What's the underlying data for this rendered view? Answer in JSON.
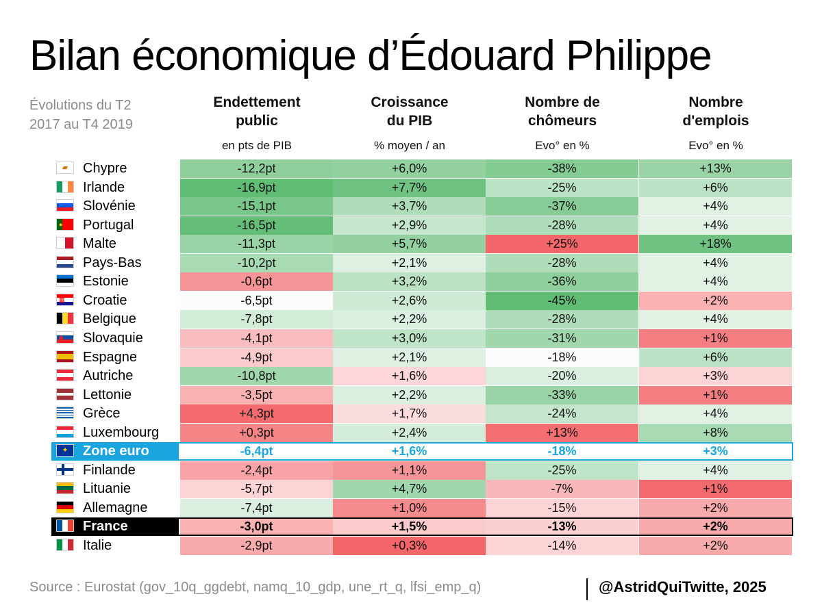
{
  "title": "Bilan économique d’Édouard Philippe",
  "period": [
    "Évolutions du T2",
    "2017 au T4 2019"
  ],
  "columns": [
    {
      "title": [
        "Endettement",
        "public"
      ],
      "unit": "en pts de PIB"
    },
    {
      "title": [
        "Croissance",
        "du PIB"
      ],
      "unit": "% moyen / an"
    },
    {
      "title": [
        "Nombre de",
        "chômeurs"
      ],
      "unit": "Evo° en %"
    },
    {
      "title": [
        "Nombre",
        "d'emplois"
      ],
      "unit": "Evo° en %"
    }
  ],
  "colors": {
    "green_strong": "#5ab96e",
    "green_light": "#e8f5eb",
    "neutral": "#fbfcfb",
    "red_light": "#fde3e4",
    "red_strong": "#f26568",
    "eurozone_accent": "#1aa5de",
    "france_accent": "#000000"
  },
  "chart_data": {
    "type": "table",
    "title": "Bilan économique d’Édouard Philippe",
    "subtitle": "Évolutions du T2 2017 au T4 2019",
    "columns": [
      "Endettement public",
      "Croissance du PIB",
      "Nombre de chômeurs",
      "Nombre d'emplois"
    ],
    "units": [
      "en pts de PIB",
      "% moyen / an",
      "Evo° en %",
      "Evo° en %"
    ],
    "rows": [
      {
        "country": "Chypre",
        "flag": "cyprus-flag",
        "values": [
          "-12,2pt",
          "+6,0%",
          "-38%",
          "+13%"
        ],
        "scores": [
          0.63,
          0.6,
          0.7,
          0.55
        ]
      },
      {
        "country": "Irlande",
        "flag": "ireland-flag",
        "values": [
          "-16,9pt",
          "+7,7%",
          "-25%",
          "+6%"
        ],
        "scores": [
          0.95,
          0.85,
          0.3,
          0.3
        ]
      },
      {
        "country": "Slovénie",
        "flag": "slovenia-flag",
        "values": [
          "-15,1pt",
          "+3,7%",
          "-37%",
          "+4%"
        ],
        "scores": [
          0.78,
          0.4,
          0.68,
          0.05
        ]
      },
      {
        "country": "Portugal",
        "flag": "portugal-flag",
        "values": [
          "-16,5pt",
          "+2,9%",
          "-28%",
          "+4%"
        ],
        "scores": [
          0.92,
          0.25,
          0.4,
          0.05
        ]
      },
      {
        "country": "Malte",
        "flag": "malta-flag",
        "values": [
          "-11,3pt",
          "+5,7%",
          "+25%",
          "+18%"
        ],
        "scores": [
          0.55,
          0.6,
          -1.0,
          0.85
        ]
      },
      {
        "country": "Pays-Bas",
        "flag": "netherlands-flag",
        "values": [
          "-10,2pt",
          "+2,1%",
          "-28%",
          "+4%"
        ],
        "scores": [
          0.45,
          0.08,
          0.4,
          0.05
        ]
      },
      {
        "country": "Estonie",
        "flag": "estonia-flag",
        "values": [
          "-0,6pt",
          "+3,2%",
          "-36%",
          "+4%"
        ],
        "scores": [
          -0.62,
          0.32,
          0.62,
          0.05
        ]
      },
      {
        "country": "Croatie",
        "flag": "croatia-flag",
        "values": [
          "-6,5pt",
          "+2,6%",
          "-45%",
          "+2%"
        ],
        "scores": [
          0.0,
          0.18,
          0.95,
          -0.4
        ]
      },
      {
        "country": "Belgique",
        "flag": "belgium-flag",
        "values": [
          "-7,8pt",
          "+2,2%",
          "-28%",
          "+4%"
        ],
        "scores": [
          0.15,
          0.1,
          0.4,
          0.05
        ]
      },
      {
        "country": "Slovaquie",
        "flag": "slovakia-flag",
        "values": [
          "-4,1pt",
          "+3,0%",
          "-31%",
          "+1%"
        ],
        "scores": [
          -0.3,
          0.28,
          0.5,
          -0.8
        ]
      },
      {
        "country": "Espagne",
        "flag": "spain-flag",
        "values": [
          "-4,9pt",
          "+2,1%",
          "-18%",
          "+6%"
        ],
        "scores": [
          -0.2,
          0.08,
          0.0,
          0.3
        ]
      },
      {
        "country": "Autriche",
        "flag": "austria-flag",
        "values": [
          "-10,8pt",
          "+1,6%",
          "-20%",
          "+3%"
        ],
        "scores": [
          0.5,
          -0.1,
          0.1,
          -0.12
        ]
      },
      {
        "country": "Lettonie",
        "flag": "latvia-flag",
        "values": [
          "-3,5pt",
          "+2,2%",
          "-33%",
          "+1%"
        ],
        "scores": [
          -0.4,
          0.1,
          0.55,
          -0.8
        ]
      },
      {
        "country": "Grèce",
        "flag": "greece-flag",
        "values": [
          "+4,3pt",
          "+1,7%",
          "-24%",
          "+4%"
        ],
        "scores": [
          -0.95,
          -0.05,
          0.25,
          0.05
        ]
      },
      {
        "country": "Luxembourg",
        "flag": "luxembourg-flag",
        "values": [
          "+0,3pt",
          "+2,4%",
          "+13%",
          "+8%"
        ],
        "scores": [
          -0.75,
          0.14,
          -0.92,
          0.45
        ]
      },
      {
        "country": "Zone euro",
        "flag": "eu-flag",
        "values": [
          "-6,4pt",
          "+1,6%",
          "-18%",
          "+3%"
        ],
        "scores": [
          0,
          0,
          0,
          0
        ],
        "highlight": "eurozone"
      },
      {
        "country": "Finlande",
        "flag": "finland-flag",
        "values": [
          "-2,4pt",
          "+1,1%",
          "-25%",
          "+4%"
        ],
        "scores": [
          -0.5,
          -0.62,
          0.28,
          0.05
        ]
      },
      {
        "country": "Lituanie",
        "flag": "lithuania-flag",
        "values": [
          "-5,7pt",
          "+4,7%",
          "-7%",
          "+1%"
        ],
        "scores": [
          -0.12,
          0.5,
          -0.35,
          -0.95
        ]
      },
      {
        "country": "Allemagne",
        "flag": "germany-flag",
        "values": [
          "-7,4pt",
          "+1,0%",
          "-15%",
          "+2%"
        ],
        "scores": [
          0.1,
          -0.7,
          -0.12,
          -0.45
        ]
      },
      {
        "country": "France",
        "flag": "france-flag",
        "values": [
          "-3,0pt",
          "+1,5%",
          "-13%",
          "+2%"
        ],
        "scores": [
          -0.4,
          -0.2,
          -0.15,
          -0.45
        ],
        "highlight": "france"
      },
      {
        "country": "Italie",
        "flag": "italy-flag",
        "values": [
          "-2,9pt",
          "+0,3%",
          "-14%",
          "+2%"
        ],
        "scores": [
          -0.45,
          -1.0,
          -0.12,
          -0.45
        ]
      }
    ]
  },
  "footer": {
    "source": "Source : Eurostat (gov_10q_ggdebt, namq_10_gdp, une_rt_q, lfsi_emp_q)",
    "credit": "@AstridQuiTwitte, 2025"
  }
}
